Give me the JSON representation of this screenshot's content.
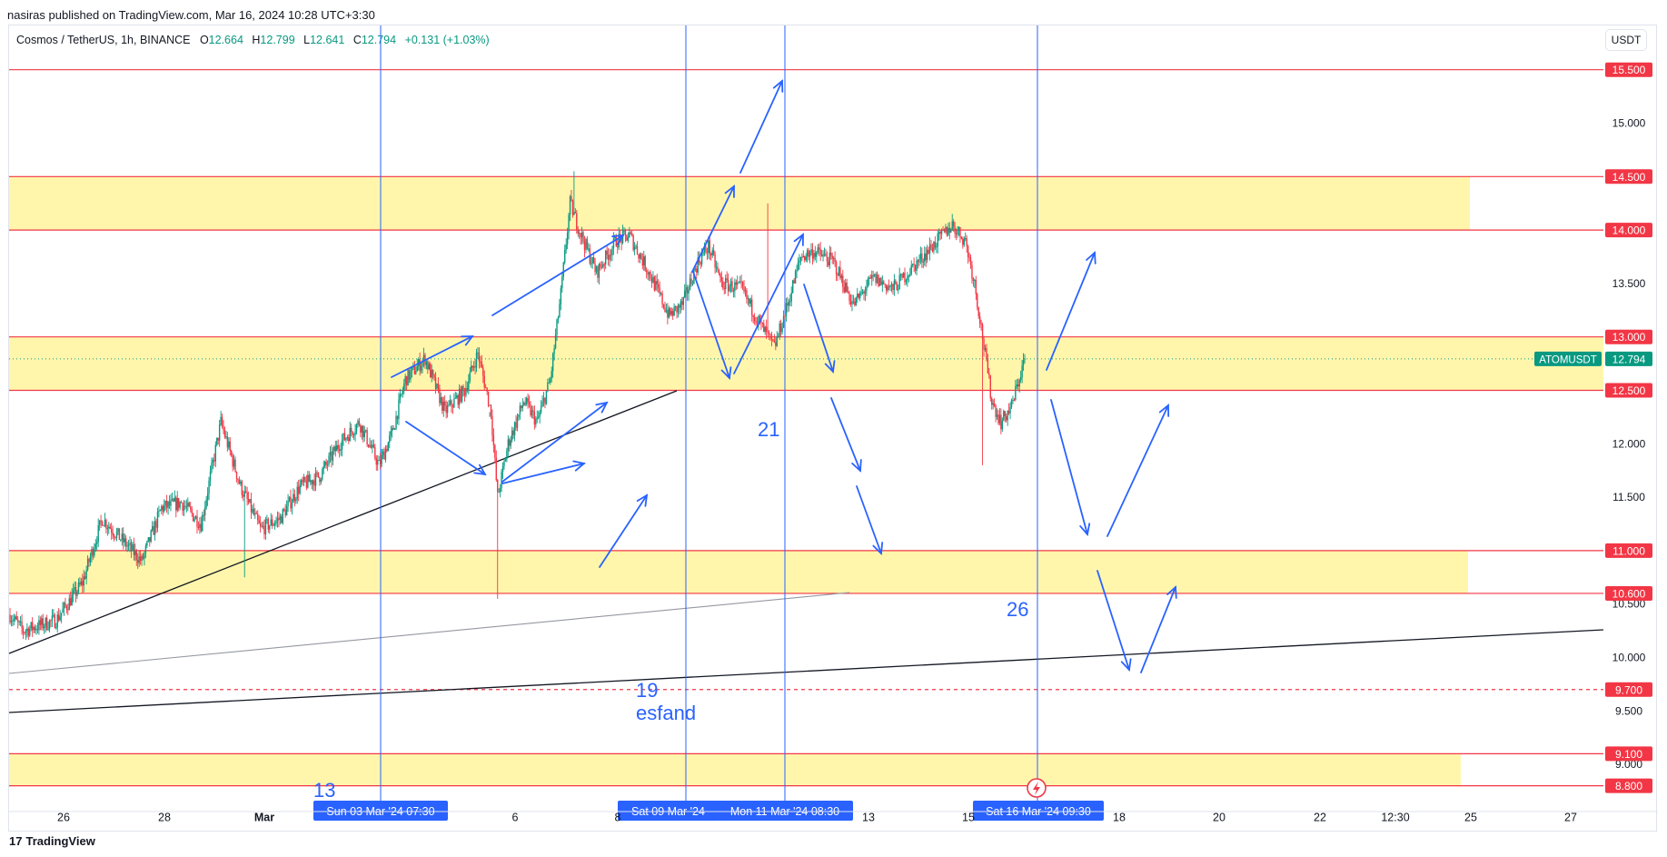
{
  "header": {
    "published": "nasiras published on TradingView.com, Mar 16, 2024 10:28 UTC+3:30"
  },
  "symbol": {
    "title": "Cosmos / TetherUS, 1h, BINANCE",
    "o_label": "O",
    "o": "12.664",
    "h_label": "H",
    "h": "12.799",
    "l_label": "L",
    "l": "12.641",
    "c_label": "C",
    "c": "12.794",
    "change": "+0.131 (+1.03%)"
  },
  "currency_button": "USDT",
  "footer": {
    "brand": "TradingView",
    "logo_glyph": "17"
  },
  "chart_data": {
    "type": "candlestick",
    "symbol": "ATOMUSDT",
    "timeframe": "1h",
    "last_price": 12.794,
    "last_price_label": "12.794",
    "colors": {
      "up": "#089981",
      "down": "#f23645",
      "level_line": "#f23645",
      "zone_fill": "#fff59d",
      "drawing": "#2962ff",
      "trendline": "#131722",
      "trendline_light": "#9598a1"
    },
    "y_axis": {
      "range": [
        8.7,
        15.8
      ],
      "ticks": [
        "15.000",
        "14.000",
        "13.500",
        "12.000",
        "11.500",
        "10.500",
        "10.000",
        "9.500",
        "9.000"
      ]
    },
    "x_axis": {
      "ticks": [
        "26",
        "28",
        "Mar",
        "6",
        "8",
        "13",
        "15",
        "18",
        "20",
        "22",
        "12:30",
        "25",
        "27"
      ]
    },
    "price_levels": [
      {
        "price": 15.5,
        "label": "15.500"
      },
      {
        "price": 14.5,
        "label": "14.500"
      },
      {
        "price": 14.0,
        "label": "14.000"
      },
      {
        "price": 13.0,
        "label": "13.000"
      },
      {
        "price": 12.5,
        "label": "12.500"
      },
      {
        "price": 11.0,
        "label": "11.000"
      },
      {
        "price": 10.6,
        "label": "10.600"
      },
      {
        "price": 9.7,
        "label": "9.700",
        "style": "dashed"
      },
      {
        "price": 9.1,
        "label": "9.100"
      },
      {
        "price": 8.8,
        "label": "8.800"
      }
    ],
    "zones": [
      {
        "from": 14.0,
        "to": 14.5
      },
      {
        "from": 12.5,
        "to": 13.0
      },
      {
        "from": 10.6,
        "to": 11.0
      },
      {
        "from": 8.8,
        "to": 9.1
      }
    ],
    "vertical_markers": [
      {
        "label": "Sun 03 Mar '24   07:30"
      },
      {
        "label": "Sat 09 Mar '24"
      },
      {
        "label": "Mon 11 Mar '24   08:30"
      },
      {
        "label": "Sat 16 Mar '24   09:30"
      }
    ],
    "annotations": [
      "13",
      "19",
      "esfand",
      "21",
      "26"
    ],
    "series": [
      {
        "name": "ATOMUSDT",
        "waypoints": [
          [
            0,
            10.4
          ],
          [
            10,
            10.25
          ],
          [
            35,
            10.35
          ],
          [
            55,
            10.7
          ],
          [
            70,
            11.3
          ],
          [
            85,
            11.1
          ],
          [
            100,
            10.9
          ],
          [
            115,
            11.4
          ],
          [
            130,
            11.45
          ],
          [
            145,
            11.25
          ],
          [
            160,
            12.2
          ],
          [
            175,
            11.6
          ],
          [
            190,
            11.2
          ],
          [
            205,
            11.3
          ],
          [
            220,
            11.6
          ],
          [
            235,
            11.7
          ],
          [
            250,
            12.0
          ],
          [
            265,
            12.2
          ],
          [
            280,
            11.8
          ],
          [
            290,
            12.1
          ],
          [
            300,
            12.6
          ],
          [
            315,
            12.8
          ],
          [
            330,
            12.3
          ],
          [
            345,
            12.5
          ],
          [
            355,
            12.85
          ],
          [
            365,
            12.3
          ],
          [
            370,
            11.5
          ],
          [
            378,
            12.0
          ],
          [
            390,
            12.4
          ],
          [
            400,
            12.2
          ],
          [
            410,
            12.6
          ],
          [
            418,
            13.4
          ],
          [
            425,
            14.25
          ],
          [
            432,
            14.0
          ],
          [
            445,
            13.6
          ],
          [
            460,
            13.9
          ],
          [
            470,
            13.95
          ],
          [
            485,
            13.6
          ],
          [
            500,
            13.2
          ],
          [
            510,
            13.3
          ],
          [
            522,
            13.7
          ],
          [
            530,
            13.85
          ],
          [
            540,
            13.5
          ],
          [
            555,
            13.45
          ],
          [
            570,
            13.1
          ],
          [
            580,
            12.9
          ],
          [
            590,
            13.3
          ],
          [
            600,
            13.75
          ],
          [
            610,
            13.8
          ],
          [
            625,
            13.7
          ],
          [
            640,
            13.3
          ],
          [
            655,
            13.55
          ],
          [
            670,
            13.45
          ],
          [
            685,
            13.65
          ],
          [
            700,
            13.85
          ],
          [
            715,
            14.05
          ],
          [
            725,
            13.9
          ],
          [
            732,
            13.5
          ],
          [
            738,
            13.0
          ],
          [
            745,
            12.4
          ],
          [
            752,
            12.2
          ],
          [
            760,
            12.35
          ],
          [
            770,
            12.8
          ]
        ]
      }
    ]
  }
}
